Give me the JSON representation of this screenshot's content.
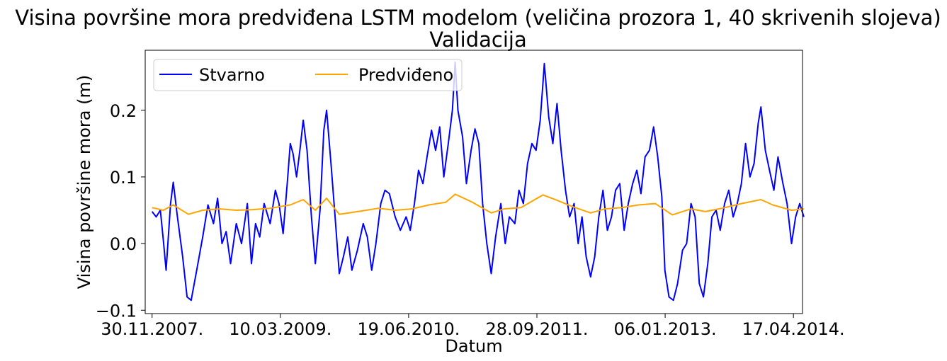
{
  "chart_data": {
    "type": "line",
    "title": "Visina površine mora predviđena LSTM modelom (veličina prozora 1, 40 skrivenih slojeva)",
    "subtitle": "Validacija",
    "xlabel": "Datum",
    "ylabel": "Visina površine mora (m)",
    "x_type": "date",
    "xlim": [
      "2007-11-05",
      "2014-05-20"
    ],
    "ylim": [
      -0.105,
      0.29
    ],
    "x_ticks": [
      {
        "date": "2007-11-30",
        "label": "30.11.2007."
      },
      {
        "date": "2009-03-10",
        "label": "10.03.2009."
      },
      {
        "date": "2010-06-19",
        "label": "19.06.2010."
      },
      {
        "date": "2011-09-28",
        "label": "28.09.2011."
      },
      {
        "date": "2013-01-06",
        "label": "06.01.2013."
      },
      {
        "date": "2014-04-17",
        "label": "17.04.2014."
      }
    ],
    "y_ticks": [
      {
        "value": -0.1,
        "label": "−0.1"
      },
      {
        "value": 0.0,
        "label": "0.0"
      },
      {
        "value": 0.1,
        "label": "0.1"
      },
      {
        "value": 0.2,
        "label": "0.2"
      }
    ],
    "legend_position": "top-left",
    "grid": false,
    "series": [
      {
        "name": "Stvarno",
        "color": "#0000ff",
        "points": [
          [
            "2007-11-30",
            0.048
          ],
          [
            "2007-12-15",
            0.04
          ],
          [
            "2007-12-30",
            0.05
          ],
          [
            "2008-01-10",
            0.005
          ],
          [
            "2008-01-20",
            -0.04
          ],
          [
            "2008-02-05",
            0.06
          ],
          [
            "2008-02-15",
            0.092
          ],
          [
            "2008-03-01",
            0.04
          ],
          [
            "2008-03-20",
            -0.02
          ],
          [
            "2008-04-05",
            -0.08
          ],
          [
            "2008-04-20",
            -0.085
          ],
          [
            "2008-05-10",
            -0.04
          ],
          [
            "2008-06-01",
            0.01
          ],
          [
            "2008-06-20",
            0.058
          ],
          [
            "2008-07-10",
            0.03
          ],
          [
            "2008-07-25",
            0.068
          ],
          [
            "2008-08-10",
            0.0
          ],
          [
            "2008-08-25",
            0.018
          ],
          [
            "2008-09-10",
            -0.03
          ],
          [
            "2008-10-01",
            0.03
          ],
          [
            "2008-10-20",
            0.0
          ],
          [
            "2008-11-10",
            0.06
          ],
          [
            "2008-11-25",
            -0.03
          ],
          [
            "2008-12-10",
            0.03
          ],
          [
            "2008-12-25",
            0.01
          ],
          [
            "2009-01-10",
            0.06
          ],
          [
            "2009-02-01",
            0.03
          ],
          [
            "2009-02-20",
            0.08
          ],
          [
            "2009-03-05",
            0.06
          ],
          [
            "2009-03-20",
            0.015
          ],
          [
            "2009-04-05",
            0.095
          ],
          [
            "2009-04-15",
            0.15
          ],
          [
            "2009-04-25",
            0.135
          ],
          [
            "2009-05-08",
            0.1
          ],
          [
            "2009-05-20",
            0.14
          ],
          [
            "2009-06-01",
            0.185
          ],
          [
            "2009-06-15",
            0.14
          ],
          [
            "2009-07-01",
            0.04
          ],
          [
            "2009-07-15",
            -0.03
          ],
          [
            "2009-08-01",
            0.05
          ],
          [
            "2009-08-15",
            0.17
          ],
          [
            "2009-08-25",
            0.2
          ],
          [
            "2009-09-10",
            0.12
          ],
          [
            "2009-09-25",
            0.04
          ],
          [
            "2009-10-10",
            -0.045
          ],
          [
            "2009-10-25",
            -0.02
          ],
          [
            "2009-11-10",
            0.01
          ],
          [
            "2009-11-25",
            -0.04
          ],
          [
            "2009-12-15",
            -0.01
          ],
          [
            "2010-01-05",
            0.03
          ],
          [
            "2010-01-20",
            0.01
          ],
          [
            "2010-02-05",
            -0.04
          ],
          [
            "2010-02-20",
            0.0
          ],
          [
            "2010-03-10",
            0.06
          ],
          [
            "2010-03-25",
            0.08
          ],
          [
            "2010-04-10",
            0.075
          ],
          [
            "2010-05-01",
            0.04
          ],
          [
            "2010-05-20",
            0.02
          ],
          [
            "2010-06-10",
            0.04
          ],
          [
            "2010-06-25",
            0.02
          ],
          [
            "2010-07-10",
            0.06
          ],
          [
            "2010-07-25",
            0.11
          ],
          [
            "2010-08-10",
            0.09
          ],
          [
            "2010-08-25",
            0.13
          ],
          [
            "2010-09-10",
            0.17
          ],
          [
            "2010-09-25",
            0.14
          ],
          [
            "2010-10-10",
            0.175
          ],
          [
            "2010-10-25",
            0.1
          ],
          [
            "2010-11-10",
            0.15
          ],
          [
            "2010-11-25",
            0.2
          ],
          [
            "2010-12-05",
            0.272
          ],
          [
            "2010-12-15",
            0.2
          ],
          [
            "2011-01-01",
            0.16
          ],
          [
            "2011-01-15",
            0.09
          ],
          [
            "2011-02-01",
            0.14
          ],
          [
            "2011-02-15",
            0.172
          ],
          [
            "2011-03-01",
            0.15
          ],
          [
            "2011-03-15",
            0.06
          ],
          [
            "2011-03-30",
            0.0
          ],
          [
            "2011-04-15",
            -0.045
          ],
          [
            "2011-05-01",
            0.01
          ],
          [
            "2011-05-20",
            0.06
          ],
          [
            "2011-06-05",
            0.0
          ],
          [
            "2011-06-20",
            0.04
          ],
          [
            "2011-07-10",
            0.03
          ],
          [
            "2011-07-25",
            0.08
          ],
          [
            "2011-08-10",
            0.06
          ],
          [
            "2011-08-25",
            0.12
          ],
          [
            "2011-09-10",
            0.15
          ],
          [
            "2011-09-25",
            0.14
          ],
          [
            "2011-10-10",
            0.185
          ],
          [
            "2011-10-20",
            0.24
          ],
          [
            "2011-10-25",
            0.27
          ],
          [
            "2011-11-10",
            0.19
          ],
          [
            "2011-11-25",
            0.15
          ],
          [
            "2011-12-10",
            0.21
          ],
          [
            "2011-12-25",
            0.14
          ],
          [
            "2012-01-10",
            0.08
          ],
          [
            "2012-01-25",
            0.04
          ],
          [
            "2012-02-10",
            0.06
          ],
          [
            "2012-02-25",
            0.0
          ],
          [
            "2012-03-10",
            0.04
          ],
          [
            "2012-03-25",
            -0.02
          ],
          [
            "2012-04-10",
            -0.05
          ],
          [
            "2012-04-25",
            -0.02
          ],
          [
            "2012-05-10",
            0.04
          ],
          [
            "2012-05-25",
            0.08
          ],
          [
            "2012-06-10",
            0.02
          ],
          [
            "2012-06-25",
            0.04
          ],
          [
            "2012-07-10",
            0.08
          ],
          [
            "2012-07-25",
            0.09
          ],
          [
            "2012-08-10",
            0.02
          ],
          [
            "2012-08-25",
            0.06
          ],
          [
            "2012-09-10",
            0.09
          ],
          [
            "2012-09-25",
            0.11
          ],
          [
            "2012-10-10",
            0.075
          ],
          [
            "2012-10-25",
            0.13
          ],
          [
            "2012-11-10",
            0.14
          ],
          [
            "2012-11-25",
            0.175
          ],
          [
            "2012-12-10",
            0.13
          ],
          [
            "2012-12-25",
            0.07
          ],
          [
            "2013-01-05",
            -0.04
          ],
          [
            "2013-01-20",
            -0.08
          ],
          [
            "2013-02-05",
            -0.085
          ],
          [
            "2013-02-20",
            -0.06
          ],
          [
            "2013-03-10",
            -0.01
          ],
          [
            "2013-03-25",
            0.0
          ],
          [
            "2013-04-10",
            0.06
          ],
          [
            "2013-04-25",
            0.04
          ],
          [
            "2013-05-10",
            -0.06
          ],
          [
            "2013-05-25",
            -0.08
          ],
          [
            "2013-06-10",
            -0.03
          ],
          [
            "2013-06-25",
            0.04
          ],
          [
            "2013-07-10",
            0.05
          ],
          [
            "2013-07-25",
            0.02
          ],
          [
            "2013-08-10",
            0.06
          ],
          [
            "2013-08-25",
            0.08
          ],
          [
            "2013-09-10",
            0.04
          ],
          [
            "2013-09-25",
            0.06
          ],
          [
            "2013-10-10",
            0.09
          ],
          [
            "2013-10-25",
            0.15
          ],
          [
            "2013-11-10",
            0.1
          ],
          [
            "2013-11-25",
            0.12
          ],
          [
            "2013-12-10",
            0.18
          ],
          [
            "2013-12-20",
            0.205
          ],
          [
            "2014-01-05",
            0.14
          ],
          [
            "2014-01-20",
            0.11
          ],
          [
            "2014-02-05",
            0.08
          ],
          [
            "2014-02-20",
            0.13
          ],
          [
            "2014-03-10",
            0.09
          ],
          [
            "2014-03-25",
            0.06
          ],
          [
            "2014-04-10",
            0.0
          ],
          [
            "2014-04-25",
            0.04
          ],
          [
            "2014-05-10",
            0.06
          ],
          [
            "2014-05-25",
            0.04
          ]
        ]
      },
      {
        "name": "Predviđeno",
        "color": "#ffa500",
        "points": [
          [
            "2007-11-30",
            0.054
          ],
          [
            "2008-01-10",
            0.05
          ],
          [
            "2008-02-15",
            0.058
          ],
          [
            "2008-04-10",
            0.044
          ],
          [
            "2008-06-01",
            0.05
          ],
          [
            "2008-08-01",
            0.052
          ],
          [
            "2008-10-01",
            0.05
          ],
          [
            "2008-12-01",
            0.051
          ],
          [
            "2009-02-01",
            0.053
          ],
          [
            "2009-04-15",
            0.058
          ],
          [
            "2009-06-01",
            0.066
          ],
          [
            "2009-07-15",
            0.05
          ],
          [
            "2009-08-25",
            0.068
          ],
          [
            "2009-10-10",
            0.044
          ],
          [
            "2010-01-01",
            0.049
          ],
          [
            "2010-03-01",
            0.053
          ],
          [
            "2010-05-01",
            0.05
          ],
          [
            "2010-07-01",
            0.052
          ],
          [
            "2010-09-01",
            0.058
          ],
          [
            "2010-11-01",
            0.062
          ],
          [
            "2010-12-05",
            0.074
          ],
          [
            "2011-02-01",
            0.063
          ],
          [
            "2011-04-15",
            0.046
          ],
          [
            "2011-06-01",
            0.052
          ],
          [
            "2011-08-01",
            0.054
          ],
          [
            "2011-10-20",
            0.073
          ],
          [
            "2011-12-10",
            0.065
          ],
          [
            "2012-02-01",
            0.056
          ],
          [
            "2012-04-10",
            0.046
          ],
          [
            "2012-06-01",
            0.052
          ],
          [
            "2012-08-01",
            0.054
          ],
          [
            "2012-10-01",
            0.058
          ],
          [
            "2012-12-01",
            0.06
          ],
          [
            "2013-02-01",
            0.043
          ],
          [
            "2013-04-10",
            0.052
          ],
          [
            "2013-06-01",
            0.048
          ],
          [
            "2013-08-01",
            0.053
          ],
          [
            "2013-10-10",
            0.06
          ],
          [
            "2013-12-20",
            0.066
          ],
          [
            "2014-02-01",
            0.058
          ],
          [
            "2014-04-10",
            0.05
          ],
          [
            "2014-05-25",
            0.052
          ]
        ]
      }
    ]
  }
}
